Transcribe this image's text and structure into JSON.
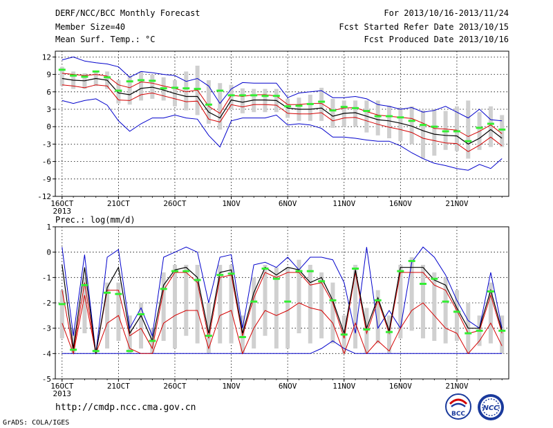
{
  "header": {
    "title": "DERF/NCC/BCC Monthly Forecast",
    "member": "Member Size=40",
    "variable": "Mean Surf. Temp.: °C",
    "period": "For 2013/10/16-2013/11/24",
    "refer": "Fcst Started Refer Date 2013/10/15",
    "produced": "Fcst Produced Date 2013/10/16"
  },
  "footer": {
    "url": "http://cmdp.ncc.cma.gov.cn",
    "grads": "GrADS: COLA/IGES",
    "logo_bcc_text": "BCC",
    "logo_ncc_text": "NCC"
  },
  "colors": {
    "envelope": "#0000cc",
    "quartile": "#d40000",
    "median": "#000000",
    "box": "#d0d0d0",
    "marker": "#33ee33"
  },
  "chart_data": [
    {
      "type": "line",
      "title": "Mean Surf. Temp.: °C",
      "x_tick_labels": [
        "16OCT",
        "21OCT",
        "26OCT",
        "1NOV",
        "6NOV",
        "11NOV",
        "16NOV",
        "21NOV"
      ],
      "x_tick_sublabel": "2013",
      "ylim": [
        -12,
        13
      ],
      "y_ticks": [
        12,
        9,
        6,
        3,
        0,
        -3,
        -6,
        -9,
        -12
      ],
      "grid": true,
      "days": 40,
      "series": [
        {
          "role": "max",
          "values": [
            11.5,
            12,
            11.3,
            11,
            10.8,
            10.3,
            8.5,
            9.5,
            9.3,
            9,
            8.8,
            7.8,
            8.3,
            7,
            4,
            6.5,
            7.6,
            7.5,
            7.5,
            7.5,
            5,
            5.8,
            6,
            6.2,
            5,
            5,
            5.2,
            4.8,
            3.8,
            3.5,
            3,
            3.3,
            2.5,
            2.8,
            3.5,
            2.5,
            1.5,
            3,
            1.2,
            1
          ]
        },
        {
          "role": "q75",
          "values": [
            9.2,
            9,
            8.8,
            9,
            8.7,
            7.2,
            6.7,
            7.7,
            7.5,
            7,
            6.6,
            6,
            6.3,
            3.5,
            2.3,
            5.4,
            5.2,
            5.5,
            5.5,
            5.3,
            3.8,
            3.8,
            4,
            4,
            2.8,
            3.2,
            3.3,
            2.6,
            2,
            1.8,
            1.6,
            1.4,
            0.6,
            -0.3,
            -0.4,
            -0.6,
            -1.7,
            -0.8,
            0.3,
            -1.2
          ]
        },
        {
          "role": "median",
          "values": [
            8.3,
            8,
            7.9,
            8.3,
            8,
            5.8,
            5.5,
            6.6,
            6.8,
            6.3,
            5.7,
            5.2,
            5.2,
            2.5,
            1.5,
            4.6,
            4.2,
            4.6,
            4.6,
            4.5,
            3.2,
            3,
            3,
            3.2,
            1.8,
            2.3,
            2.4,
            1.8,
            1.2,
            1,
            0.6,
            0.1,
            -0.7,
            -1.3,
            -1.5,
            -1.6,
            -3,
            -2,
            -0.5,
            -2
          ]
        },
        {
          "role": "q25",
          "values": [
            7.2,
            7,
            6.7,
            7.2,
            7,
            4.6,
            4.5,
            5.5,
            5.8,
            5.3,
            4.8,
            4.3,
            4.4,
            1.3,
            0.8,
            3.8,
            3.4,
            3.8,
            3.8,
            3.7,
            2.3,
            2.2,
            2.2,
            2.4,
            1,
            1.5,
            1.6,
            1,
            0.4,
            -0.1,
            -0.5,
            -1,
            -2,
            -2.4,
            -2.8,
            -2.9,
            -4.3,
            -3.2,
            -1.8,
            -3.3
          ]
        },
        {
          "role": "min",
          "values": [
            4.5,
            4,
            4.5,
            4.8,
            3.7,
            1,
            -0.8,
            0.5,
            1.5,
            1.5,
            2,
            1.5,
            1.3,
            -1.5,
            -3.5,
            1,
            1.5,
            1.5,
            1.5,
            2,
            0.3,
            0.5,
            0.3,
            -0.3,
            -1.8,
            -1.8,
            -2,
            -2.3,
            -2.5,
            -2.5,
            -3.3,
            -4.5,
            -5.5,
            -6.3,
            -6.7,
            -7.2,
            -7.5,
            -6.5,
            -7.2,
            -5.5
          ]
        },
        {
          "role": "marker",
          "values": [
            9.8,
            8.8,
            8.6,
            9.5,
            8.5,
            6.2,
            7.8,
            8,
            7.9,
            6.6,
            6.7,
            6.6,
            6.5,
            3.8,
            6.2,
            5.4,
            5.4,
            5.4,
            5.3,
            5.3,
            3.5,
            3.6,
            3.9,
            4.3,
            2.8,
            3.4,
            3.2,
            2.7,
            1.8,
            1.8,
            1.6,
            1,
            0.3,
            0,
            -0.8,
            -0.8,
            -2.5,
            -0.2,
            0.5,
            -0.5
          ]
        },
        {
          "role": "box_top",
          "values": [
            10.3,
            9.5,
            9.2,
            9.6,
            9.5,
            8,
            8.8,
            9.5,
            9,
            8.5,
            8,
            9.5,
            10.5,
            8,
            7.5,
            7.2,
            6.6,
            6.5,
            6.5,
            6.5,
            4.8,
            5,
            5.5,
            6.7,
            4.8,
            4.5,
            4.5,
            4.5,
            4.5,
            3.6,
            3.3,
            3.5,
            2.8,
            3,
            2.7,
            3.5,
            4.5,
            2.5,
            3.5,
            2
          ]
        },
        {
          "role": "box_bottom",
          "values": [
            7,
            6.5,
            6.5,
            7,
            6.5,
            4,
            3.8,
            4.5,
            4.8,
            4.5,
            3.5,
            2.8,
            2,
            0.5,
            -0.5,
            3,
            2.3,
            2.5,
            2.5,
            2.5,
            1.5,
            1,
            1,
            1,
            -0.2,
            0,
            0,
            -1,
            -1.5,
            -2,
            -2.5,
            -3,
            -5.5,
            -5,
            -4,
            -4.2,
            -5.5,
            -4,
            -3.5,
            -3.5
          ]
        }
      ]
    },
    {
      "type": "line",
      "title": "Prec.: log(mm/d)",
      "x_tick_labels": [
        "16OCT",
        "21OCT",
        "26OCT",
        "1NOV",
        "6NOV",
        "11NOV",
        "16NOV",
        "21NOV"
      ],
      "x_tick_sublabel": "2013",
      "ylim": [
        -5,
        1
      ],
      "y_ticks": [
        1,
        0,
        -1,
        -2,
        -3,
        -4,
        -5
      ],
      "grid": true,
      "days": 40,
      "series": [
        {
          "role": "max",
          "values": [
            0.2,
            -3.3,
            -0.1,
            -4,
            -0.2,
            0.1,
            -3,
            -2.2,
            -3.3,
            -0.2,
            0,
            0.2,
            0,
            -2,
            -0.2,
            -0.1,
            -3,
            -0.5,
            -0.4,
            -0.6,
            -0.2,
            -0.7,
            -0.2,
            -0.2,
            -0.3,
            -1.2,
            -3.2,
            0.2,
            -3,
            -2.3,
            -3,
            -0.4,
            0.2,
            -0.2,
            -0.9,
            -1.9,
            -2.7,
            -3,
            -0.8,
            -3
          ]
        },
        {
          "role": "median",
          "values": [
            -0.5,
            -3.8,
            -0.6,
            -4,
            -1.4,
            -0.6,
            -3.2,
            -2.5,
            -3.5,
            -1.3,
            -0.7,
            -0.6,
            -1,
            -3.2,
            -0.8,
            -0.7,
            -3.2,
            -1.6,
            -0.6,
            -0.9,
            -0.6,
            -0.7,
            -1.2,
            -1,
            -1.9,
            -3.2,
            -0.7,
            -3,
            -1.8,
            -3.1,
            -0.6,
            -0.6,
            -0.6,
            -1.1,
            -1.3,
            -2.2,
            -3,
            -3,
            -1.5,
            -3.1
          ]
        },
        {
          "role": "q75",
          "values": [
            -1.5,
            -3.9,
            -1.2,
            -4,
            -1.5,
            -1.5,
            -3.3,
            -3,
            -3.8,
            -1.5,
            -0.8,
            -0.8,
            -1.2,
            -3.4,
            -1,
            -0.9,
            -3.3,
            -1.8,
            -0.8,
            -1,
            -0.8,
            -0.8,
            -1.3,
            -1.2,
            -2,
            -3.4,
            -0.8,
            -3.2,
            -1.9,
            -3.2,
            -0.8,
            -0.8,
            -0.8,
            -1.3,
            -1.5,
            -2.3,
            -3.2,
            -3.1,
            -1.7,
            -3.2
          ]
        },
        {
          "role": "q25",
          "values": [
            -2.8,
            -4,
            -1.7,
            -4,
            -2.8,
            -2.5,
            -3.8,
            -4,
            -4,
            -2.8,
            -2.5,
            -2.3,
            -2.3,
            -3.8,
            -2.5,
            -2.3,
            -4,
            -3,
            -2.3,
            -2.5,
            -2.3,
            -2,
            -2.2,
            -2.3,
            -2.8,
            -4,
            -2.8,
            -4,
            -3.5,
            -3.9,
            -3,
            -2.3,
            -2,
            -2.5,
            -3,
            -3.2,
            -4,
            -3.5,
            -2.8,
            -3.7
          ]
        },
        {
          "role": "min",
          "values": [
            -4,
            -4,
            -4,
            -4,
            -4,
            -4,
            -4,
            -4,
            -4,
            -4,
            -4,
            -4,
            -4,
            -4,
            -4,
            -4,
            -4,
            -4,
            -4,
            -4,
            -4,
            -4,
            -4,
            -3.8,
            -3.5,
            -3.8,
            -4,
            -4,
            -4,
            -4,
            -4,
            -4,
            -4,
            -4,
            -4,
            -4,
            -4,
            -4,
            -4,
            -4
          ]
        },
        {
          "role": "marker",
          "values": [
            -2.05,
            -3.85,
            -1.3,
            -3.9,
            -1.6,
            -1.65,
            -3.9,
            -2.45,
            -3.5,
            -1.45,
            -0.75,
            -0.75,
            -1.1,
            -3.3,
            -0.9,
            -0.85,
            -3.35,
            -1.95,
            -0.65,
            -1.05,
            -1.95,
            -0.75,
            -0.75,
            -1.15,
            -1.9,
            -3.25,
            -0.65,
            -3.05,
            -1.9,
            -3.15,
            -0.75,
            -0.35,
            -1.25,
            -1.05,
            -1.95,
            -2.35,
            -3.2,
            -3.1,
            -1.55,
            -3.1
          ]
        },
        {
          "role": "box_top",
          "values": [
            -1.5,
            -3,
            -1,
            -3.8,
            -1.2,
            -1.2,
            -2.5,
            -2,
            -3,
            -0.8,
            -0.5,
            -0.5,
            -0.5,
            -2,
            -0.5,
            -0.5,
            -2.5,
            -1,
            -0.5,
            -0.6,
            -0.6,
            -0.3,
            -0.5,
            -0.8,
            -1.2,
            -2.5,
            -0.5,
            -2.2,
            -1.5,
            -2.5,
            -0.5,
            -0.2,
            -0.5,
            -0.8,
            -1,
            -1.5,
            -2,
            -2.5,
            -1.2,
            -2.5
          ]
        },
        {
          "role": "box_bottom",
          "values": [
            -3.4,
            -4,
            -3.2,
            -4,
            -3.8,
            -3.5,
            -4,
            -3.8,
            -4,
            -3.5,
            -3.8,
            -3.3,
            -3.6,
            -4,
            -3.6,
            -3.6,
            -4,
            -3.8,
            -3.3,
            -3.8,
            -3.8,
            -3.2,
            -3.6,
            -3.4,
            -3.6,
            -4,
            -3.8,
            -4,
            -3.6,
            -4,
            -3.4,
            -3.1,
            -3.4,
            -3.5,
            -3.6,
            -3.5,
            -4,
            -3.7,
            -3.6,
            -4
          ]
        }
      ]
    }
  ]
}
